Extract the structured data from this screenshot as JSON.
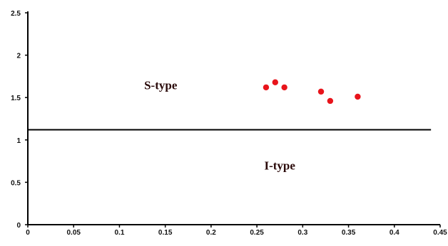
{
  "chart_data": {
    "type": "scatter",
    "xlim": [
      0,
      0.45
    ],
    "ylim": [
      0,
      2.5
    ],
    "x_ticks": [
      "0",
      "0.05",
      "0.1",
      "0.15",
      "0.2",
      "0.25",
      "0.3",
      "0.35",
      "0.4",
      "0.45"
    ],
    "y_ticks": [
      "0",
      "0.5",
      "1",
      "1.5",
      "2",
      "2.5"
    ],
    "threshold_y": 1.12,
    "threshold_x_range": [
      0,
      0.44
    ],
    "points": [
      {
        "x": 0.26,
        "y": 1.62
      },
      {
        "x": 0.27,
        "y": 1.68
      },
      {
        "x": 0.28,
        "y": 1.62
      },
      {
        "x": 0.32,
        "y": 1.57
      },
      {
        "x": 0.33,
        "y": 1.46
      },
      {
        "x": 0.36,
        "y": 1.51
      }
    ],
    "point_color": "#e8141b",
    "region_labels": [
      {
        "text": "S-type",
        "x": 0.145,
        "y": 1.6
      },
      {
        "text": "I-type",
        "x": 0.275,
        "y": 0.65
      }
    ],
    "grid": false,
    "legend": "none"
  }
}
